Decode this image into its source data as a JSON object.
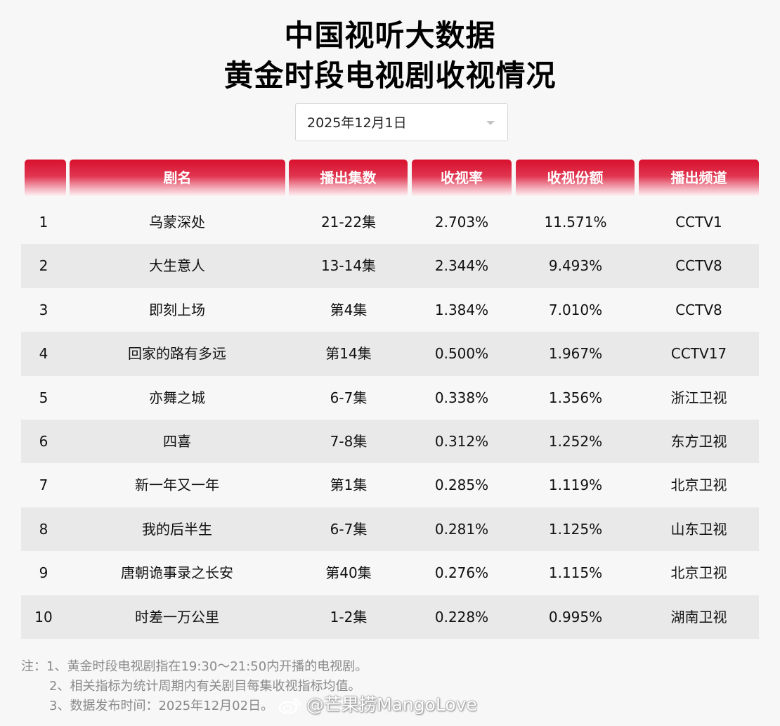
{
  "header": {
    "title_line1": "中国视听大数据",
    "title_line2": "黄金时段电视剧收视情况"
  },
  "date_select": {
    "value": "2025年12月1日"
  },
  "table": {
    "columns": [
      "",
      "剧名",
      "播出集数",
      "收视率",
      "收视份额",
      "播出频道"
    ],
    "rows": [
      {
        "rank": "1",
        "name": "乌蒙深处",
        "episodes": "21-22集",
        "rating": "2.703%",
        "share": "11.571%",
        "channel": "CCTV1"
      },
      {
        "rank": "2",
        "name": "大生意人",
        "episodes": "13-14集",
        "rating": "2.344%",
        "share": "9.493%",
        "channel": "CCTV8"
      },
      {
        "rank": "3",
        "name": "即刻上场",
        "episodes": "第4集",
        "rating": "1.384%",
        "share": "7.010%",
        "channel": "CCTV8"
      },
      {
        "rank": "4",
        "name": "回家的路有多远",
        "episodes": "第14集",
        "rating": "0.500%",
        "share": "1.967%",
        "channel": "CCTV17"
      },
      {
        "rank": "5",
        "name": "亦舞之城",
        "episodes": "6-7集",
        "rating": "0.338%",
        "share": "1.356%",
        "channel": "浙江卫视"
      },
      {
        "rank": "6",
        "name": "四喜",
        "episodes": "7-8集",
        "rating": "0.312%",
        "share": "1.252%",
        "channel": "东方卫视"
      },
      {
        "rank": "7",
        "name": "新一年又一年",
        "episodes": "第1集",
        "rating": "0.285%",
        "share": "1.119%",
        "channel": "北京卫视"
      },
      {
        "rank": "8",
        "name": "我的后半生",
        "episodes": "6-7集",
        "rating": "0.281%",
        "share": "1.125%",
        "channel": "山东卫视"
      },
      {
        "rank": "9",
        "name": "唐朝诡事录之长安",
        "episodes": "第40集",
        "rating": "0.276%",
        "share": "1.115%",
        "channel": "北京卫视"
      },
      {
        "rank": "10",
        "name": "时差一万公里",
        "episodes": "1-2集",
        "rating": "0.228%",
        "share": "0.995%",
        "channel": "湖南卫视"
      }
    ]
  },
  "notes": [
    "注：1、黄金时段电视剧指在19:30～21:50内开播的电视剧。",
    "2、相关指标为统计周期内有关剧目每集收视指标均值。",
    "3、数据发布时间：2025年12月02日。"
  ],
  "watermark": {
    "text": "@芒果捞MangoLove",
    "icon": "weibo-icon"
  },
  "colors": {
    "header_red": "#d8102e",
    "row_alt": "#e9e9e9",
    "background": "#f7f7f7",
    "note_gray": "#8a8a8a"
  }
}
